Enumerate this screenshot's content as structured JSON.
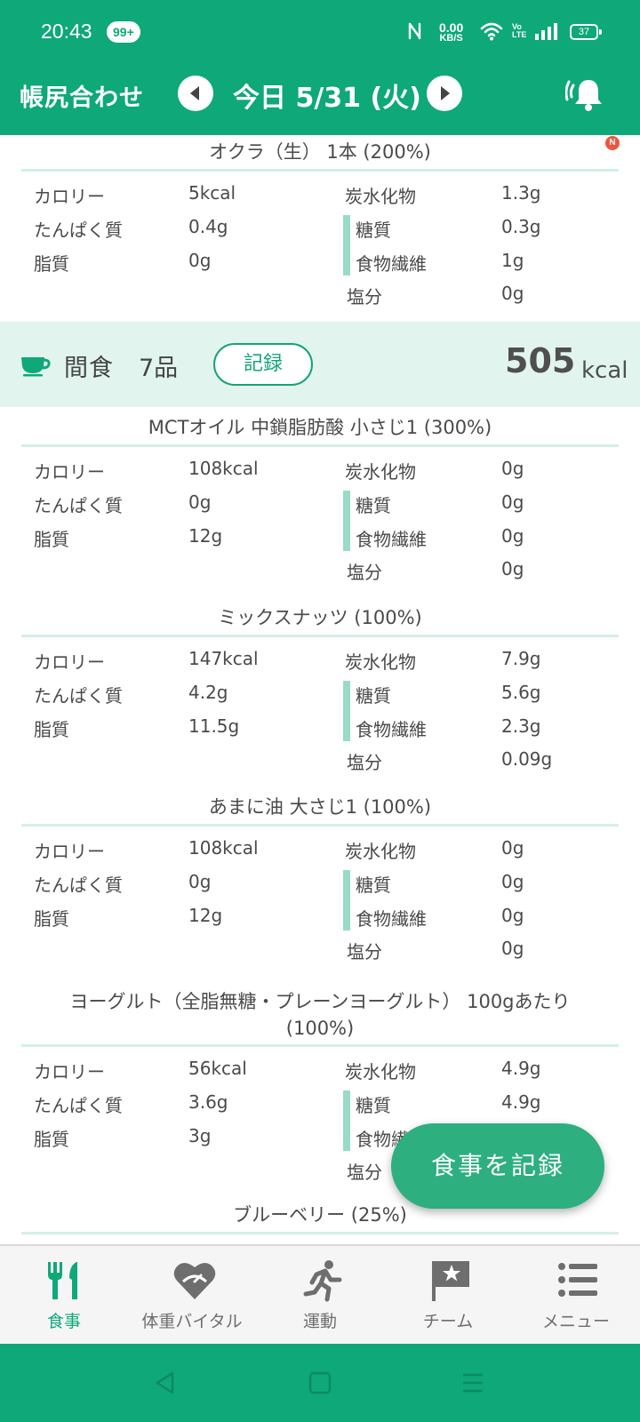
{
  "status_bar": {
    "time": "20:43",
    "badge": "99+",
    "net_speed": "0.00",
    "net_unit": "KB/S",
    "volte": "Vo LTE",
    "battery": "37"
  },
  "app_bar": {
    "title": "帳尻合わせ",
    "date": "今日 5/31 (火)",
    "bell_badge": "N"
  },
  "foods_top": [
    {
      "title": "オクラ（生） 1本 (200%)",
      "calorie": "5kcal",
      "protein": "0.4g",
      "fat": "0g",
      "carbs": "1.3g",
      "sugar": "0.3g",
      "fiber": "1g",
      "salt": "0g"
    }
  ],
  "labels": {
    "calorie": "カロリー",
    "protein": "たんぱく質",
    "fat": "脂質",
    "carbs": "炭水化物",
    "sugar": "糖質",
    "fiber": "食物繊維",
    "salt": "塩分"
  },
  "snack_section": {
    "label": "間食",
    "count": "7品",
    "record_button": "記録",
    "kcal": "505",
    "kcal_unit": "kcal"
  },
  "foods": [
    {
      "title": "MCTオイル 中鎖脂肪酸 小さじ1 (300%)",
      "calorie": "108kcal",
      "protein": "0g",
      "fat": "12g",
      "carbs": "0g",
      "sugar": "0g",
      "fiber": "0g",
      "salt": "0g"
    },
    {
      "title": "ミックスナッツ (100%)",
      "calorie": "147kcal",
      "protein": "4.2g",
      "fat": "11.5g",
      "carbs": "7.9g",
      "sugar": "5.6g",
      "fiber": "2.3g",
      "salt": "0.09g"
    },
    {
      "title": "あまに油 大さじ1 (100%)",
      "calorie": "108kcal",
      "protein": "0g",
      "fat": "12g",
      "carbs": "0g",
      "sugar": "0g",
      "fiber": "0g",
      "salt": "0g"
    },
    {
      "title": "ヨーグルト（全脂無糖・プレーンヨーグルト） 100gあたり",
      "title_line2": "(100%)",
      "calorie": "56kcal",
      "protein": "3.6g",
      "fat": "3g",
      "carbs": "4.9g",
      "sugar": "4.9g",
      "fiber": "",
      "salt": ""
    },
    {
      "title": "ブルーベリー (25%)"
    }
  ],
  "fab": {
    "label": "食事を記録"
  },
  "tabs": [
    {
      "label": "食事",
      "icon": "fork-knife-icon",
      "active": true
    },
    {
      "label": "体重バイタル",
      "icon": "heart-scale-icon",
      "active": false
    },
    {
      "label": "運動",
      "icon": "runner-icon",
      "active": false
    },
    {
      "label": "チーム",
      "icon": "flag-star-icon",
      "active": false
    },
    {
      "label": "メニュー",
      "icon": "list-icon",
      "active": false
    }
  ],
  "colors": {
    "primary": "#0fa878",
    "band": "#e1f5ee",
    "accent_bar": "#98dcc3",
    "fab": "#2daf7f"
  }
}
